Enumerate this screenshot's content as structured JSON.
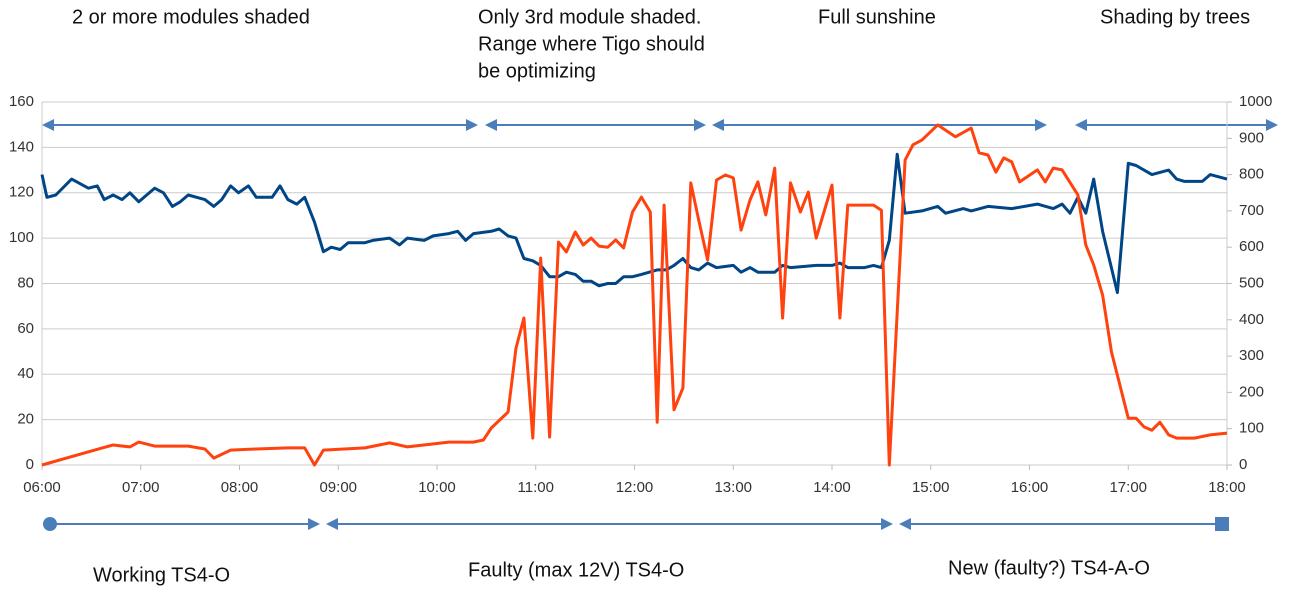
{
  "chart_data": {
    "type": "line",
    "xlim": [
      6,
      18
    ],
    "xticks": [
      {
        "value": 6,
        "label": "06:00"
      },
      {
        "value": 7,
        "label": "07:00"
      },
      {
        "value": 8,
        "label": "08:00"
      },
      {
        "value": 9,
        "label": "09:00"
      },
      {
        "value": 10,
        "label": "10:00"
      },
      {
        "value": 11,
        "label": "11:00"
      },
      {
        "value": 12,
        "label": "12:00"
      },
      {
        "value": 13,
        "label": "13:00"
      },
      {
        "value": 14,
        "label": "14:00"
      },
      {
        "value": 15,
        "label": "15:00"
      },
      {
        "value": 16,
        "label": "16:00"
      },
      {
        "value": 17,
        "label": "17:00"
      },
      {
        "value": 18,
        "label": "18:00"
      }
    ],
    "ylim": [
      0,
      160
    ],
    "yticks": [
      0,
      20,
      40,
      60,
      80,
      100,
      120,
      140,
      160
    ],
    "y2lim": [
      0,
      1000
    ],
    "y2ticks": [
      0,
      100,
      200,
      300,
      400,
      500,
      600,
      700,
      800,
      900,
      1000
    ],
    "grid": true,
    "annotations_top": [
      [
        "2 or more modules shaded"
      ],
      [
        "Only 3rd module shaded.",
        "Range where Tigo should",
        "be optimizing"
      ],
      [
        "Full sunshine"
      ],
      [
        "Shading by trees"
      ]
    ],
    "annotations_bottom": [
      "Working TS4-O",
      "Faulty (max 12V) TS4-O",
      "New (faulty?) TS4-A-O"
    ],
    "series": [
      {
        "color": "#004586",
        "axis": "y",
        "x": [
          6.0,
          6.05,
          6.14,
          6.3,
          6.47,
          6.56,
          6.63,
          6.72,
          6.81,
          6.89,
          6.98,
          7.14,
          7.23,
          7.32,
          7.4,
          7.48,
          7.65,
          7.74,
          7.82,
          7.91,
          7.99,
          8.09,
          8.17,
          8.33,
          8.41,
          8.49,
          8.58,
          8.66,
          8.76,
          8.85,
          8.93,
          9.02,
          9.1,
          9.27,
          9.35,
          9.52,
          9.62,
          9.7,
          9.87,
          9.96,
          10.12,
          10.21,
          10.29,
          10.37,
          10.55,
          10.63,
          10.72,
          10.8,
          10.88,
          10.97,
          11.05,
          11.14,
          11.23,
          11.31,
          11.4,
          11.48,
          11.56,
          11.64,
          11.73,
          11.81,
          11.89,
          11.98,
          12.07,
          12.23,
          12.32,
          12.4,
          12.49,
          12.57,
          12.65,
          12.74,
          12.83,
          13.0,
          13.08,
          13.17,
          13.25,
          13.42,
          13.5,
          13.58,
          13.84,
          14.0,
          14.08,
          14.16,
          14.33,
          14.42,
          14.5,
          14.58,
          14.66,
          14.74,
          14.91,
          15.07,
          15.15,
          15.33,
          15.41,
          15.58,
          15.82,
          16.08,
          16.24,
          16.33,
          16.41,
          16.49,
          16.57,
          16.65,
          16.74,
          16.89,
          17.0,
          17.08,
          17.16,
          17.24,
          17.41,
          17.49,
          17.57,
          17.75,
          17.83,
          18.0
        ],
        "values": [
          128,
          118,
          119,
          126,
          122,
          123,
          117,
          119,
          117,
          120,
          116,
          122,
          120,
          114,
          116,
          119,
          117,
          114,
          117,
          123,
          120,
          123,
          118,
          118,
          123,
          117,
          115,
          118,
          107,
          94,
          96,
          95,
          98,
          98,
          99,
          100,
          97,
          100,
          99,
          101,
          102,
          103,
          99,
          102,
          103,
          104,
          101,
          100,
          91,
          90,
          88,
          83,
          83,
          85,
          84,
          81,
          81,
          79,
          80,
          80,
          83,
          83,
          84,
          86,
          86,
          88,
          91,
          87,
          86,
          89,
          87,
          88,
          85,
          87,
          85,
          85,
          88,
          87,
          88,
          88,
          89,
          87,
          87,
          88,
          87,
          99,
          137,
          111,
          112,
          114,
          111,
          113,
          112,
          114,
          113,
          115,
          113,
          115,
          111,
          118,
          111,
          126,
          103,
          76,
          133,
          132,
          130,
          128,
          130,
          126,
          125,
          125,
          128,
          126
        ]
      },
      {
        "color": "#ff420e",
        "axis": "y2",
        "x": [
          6.0,
          6.61,
          6.72,
          6.89,
          6.98,
          7.14,
          7.48,
          7.65,
          7.74,
          7.91,
          8.17,
          8.49,
          8.66,
          8.76,
          8.85,
          9.27,
          9.52,
          9.7,
          10.12,
          10.37,
          10.47,
          10.55,
          10.72,
          10.8,
          10.88,
          10.97,
          11.05,
          11.14,
          11.23,
          11.31,
          11.4,
          11.48,
          11.56,
          11.64,
          11.73,
          11.81,
          11.89,
          11.98,
          12.07,
          12.16,
          12.23,
          12.3,
          12.4,
          12.49,
          12.57,
          12.65,
          12.74,
          12.83,
          12.92,
          13.0,
          13.08,
          13.17,
          13.25,
          13.33,
          13.42,
          13.5,
          13.58,
          13.68,
          13.76,
          13.84,
          14.0,
          14.08,
          14.16,
          14.33,
          14.42,
          14.5,
          14.58,
          14.74,
          14.82,
          14.91,
          15.07,
          15.25,
          15.41,
          15.49,
          15.58,
          15.66,
          15.74,
          15.82,
          15.9,
          16.08,
          16.16,
          16.24,
          16.33,
          16.49,
          16.57,
          16.65,
          16.74,
          16.83,
          17.0,
          17.08,
          17.16,
          17.24,
          17.32,
          17.41,
          17.49,
          17.67,
          17.83,
          18.0
        ],
        "values": [
          0,
          47,
          55,
          50,
          63,
          52,
          52,
          44,
          19,
          41,
          44,
          47,
          47,
          0,
          41,
          47,
          61,
          50,
          63,
          63,
          69,
          102,
          146,
          322,
          405,
          74,
          570,
          77,
          614,
          587,
          642,
          606,
          625,
          603,
          600,
          620,
          598,
          697,
          738,
          697,
          118,
          716,
          152,
          212,
          777,
          675,
          565,
          785,
          799,
          791,
          647,
          730,
          780,
          689,
          818,
          405,
          777,
          697,
          752,
          625,
          771,
          405,
          716,
          716,
          716,
          702,
          0,
          840,
          882,
          895,
          937,
          904,
          928,
          860,
          854,
          807,
          846,
          835,
          780,
          813,
          780,
          818,
          813,
          744,
          606,
          551,
          468,
          311,
          129,
          129,
          105,
          96,
          118,
          83,
          74,
          74,
          83,
          88
        ]
      }
    ]
  }
}
